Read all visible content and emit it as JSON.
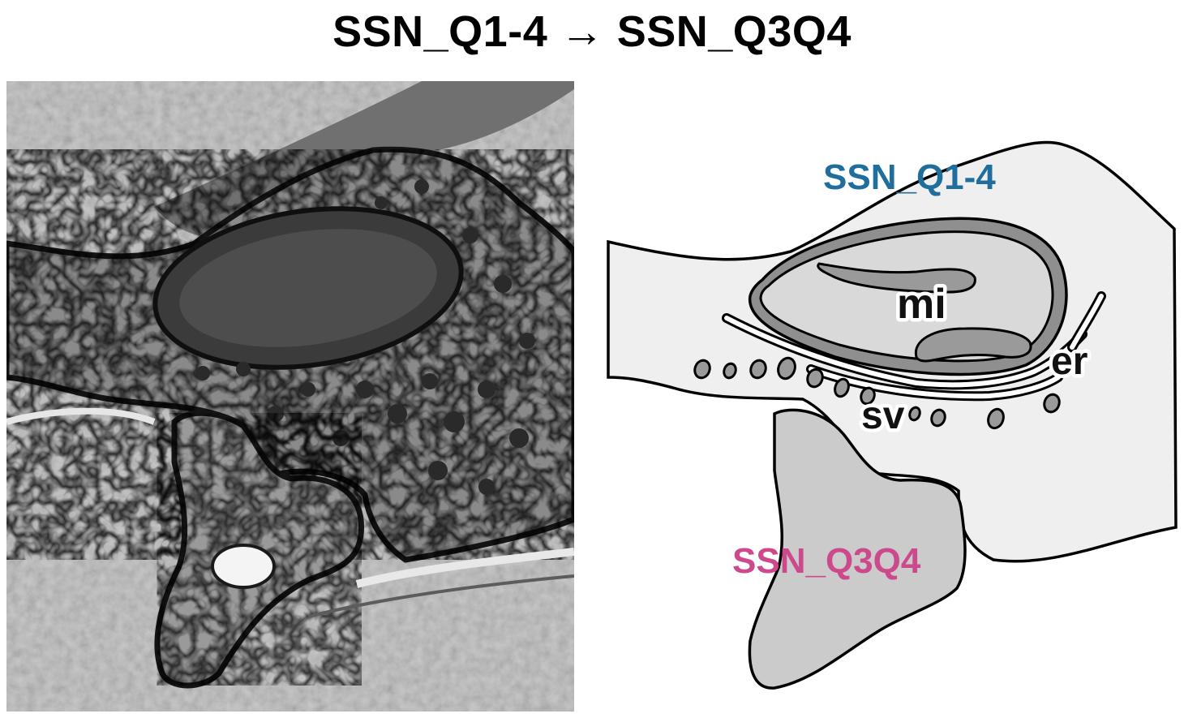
{
  "title": "SSN_Q1-4 → SSN_Q3Q4",
  "labels": {
    "presynaptic": "SSN_Q1-4",
    "postsynaptic": "SSN_Q3Q4",
    "mitochondrion": "mi",
    "endoplasmic_reticulum": "er",
    "synaptic_vesicles": "sv"
  },
  "colors": {
    "presynaptic_label": "#1f6e9e",
    "postsynaptic_label": "#cc4a8c",
    "presynaptic_fill": "#efefef",
    "postsynaptic_fill": "#cbcbcb",
    "mitochondrion_fill": "#d9d9d9",
    "cristae_fill": "#9a9a9a"
  }
}
